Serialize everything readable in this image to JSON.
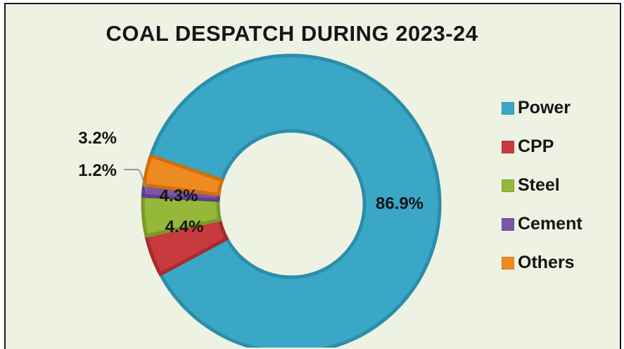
{
  "chart_data": {
    "type": "pie",
    "variant": "donut",
    "title": "COAL DESPATCH DURING 2023-24",
    "start_category": "Others",
    "slices": [
      {
        "label": "Power",
        "value": 86.9,
        "display": "86.9%",
        "color": "#3aa7c6",
        "dark": "#2a8eab"
      },
      {
        "label": "CPP",
        "value": 4.4,
        "display": "4.4%",
        "color": "#c93a3e",
        "dark": "#a82a2e"
      },
      {
        "label": "Steel",
        "value": 4.3,
        "display": "4.3%",
        "color": "#95b83a",
        "dark": "#7a9a28"
      },
      {
        "label": "Cement",
        "value": 1.2,
        "display": "1.2%",
        "color": "#7b55a6",
        "dark": "#5f3f88"
      },
      {
        "label": "Others",
        "value": 3.2,
        "display": "3.2%",
        "color": "#ee8a22",
        "dark": "#cf6f10"
      }
    ],
    "legend": {
      "position": "right"
    }
  }
}
